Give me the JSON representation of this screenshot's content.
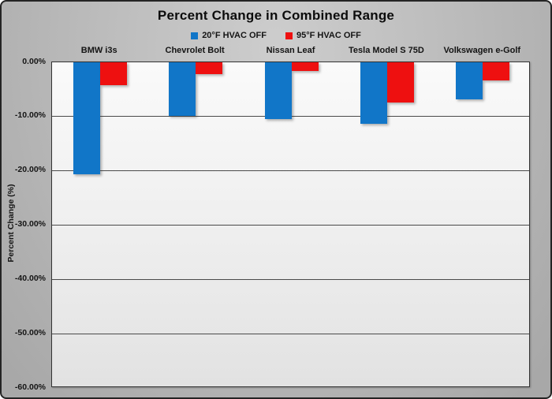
{
  "chart_data": {
    "type": "bar",
    "title": "Percent Change in Combined Range",
    "xlabel": "",
    "ylabel": "Percent Change (%)",
    "ylim": [
      -60,
      0
    ],
    "ytick_step": 10,
    "yticks": [
      "0.00%",
      "-10.00%",
      "-20.00%",
      "-30.00%",
      "-40.00%",
      "-50.00%",
      "-60.00%"
    ],
    "grid": true,
    "legend_position": "top-center",
    "categories": [
      "BMW i3s",
      "Chevrolet Bolt",
      "Nissan Leaf",
      "Tesla Model S 75D",
      "Volkswagen e-Golf"
    ],
    "series": [
      {
        "name": "20°F HVAC OFF",
        "color": "#1176c8",
        "values": [
          -20.7,
          -9.9,
          -10.4,
          -11.3,
          -6.9
        ]
      },
      {
        "name": "95°F HVAC OFF",
        "color": "#ee1010",
        "values": [
          -4.2,
          -2.2,
          -1.6,
          -7.4,
          -3.3
        ]
      }
    ]
  },
  "colors": {
    "series_blue": "#1176c8",
    "series_red": "#ee1010",
    "frame_background": "#b5b5b5",
    "plot_background": "#ededed",
    "gridline": "#4a4a4a",
    "text": "#141414"
  }
}
